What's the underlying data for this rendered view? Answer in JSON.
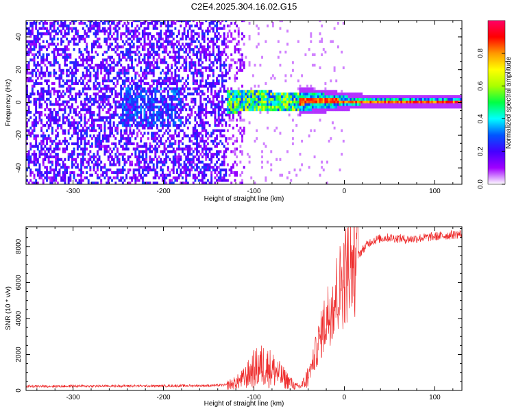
{
  "figure": {
    "title": "C2E4.2025.304.16.02.G15"
  },
  "chart_data": [
    {
      "type": "heatmap",
      "title": "C2E4.2025.304.16.02.G15",
      "xlabel": "Height of straight line (km)",
      "ylabel": "Frequency (Hz)",
      "xlim": [
        -352,
        130
      ],
      "ylim": [
        -50,
        50
      ],
      "xticks": [
        -300,
        -200,
        -100,
        0,
        100
      ],
      "xtick_labels": [
        "-300",
        "-200",
        "-100",
        "0",
        "100"
      ],
      "yticks": [
        -40,
        -20,
        0,
        20,
        40
      ],
      "ytick_labels": [
        "-40",
        "-20",
        "0",
        "20",
        "40"
      ],
      "colorbar": {
        "label": "Normalized spectral amplitude",
        "range": [
          0,
          1
        ],
        "ticks": [
          0.0,
          0.2,
          0.4,
          0.6,
          0.8
        ],
        "tick_labels": [
          "0.0",
          "0.2",
          "0.4",
          "0.6",
          "0.8"
        ],
        "colors": [
          "#ffffff",
          "#a000ff",
          "#4400ff",
          "#0055ff",
          "#00ffff",
          "#00ff44",
          "#aaff00",
          "#ffff00",
          "#ff9900",
          "#ff0000",
          "#ff0066"
        ]
      },
      "regions": [
        {
          "x": [
            -352,
            -130
          ],
          "description": "broadband noise",
          "amplitude": 0.15
        },
        {
          "x": [
            -130,
            -50
          ],
          "description": "noisy band around 0 Hz",
          "amplitude": 0.4
        },
        {
          "x": [
            -50,
            130
          ],
          "description": "narrow tone at ~0 Hz",
          "amplitude": 0.85
        }
      ]
    },
    {
      "type": "line",
      "xlabel": "Height of straight line (km)",
      "ylabel": "SNR (10 * v/v)",
      "xlim": [
        -352,
        130
      ],
      "ylim": [
        0,
        9100
      ],
      "xticks": [
        -300,
        -200,
        -100,
        0,
        100
      ],
      "xtick_labels": [
        "-300",
        "-200",
        "-100",
        "0",
        "100"
      ],
      "yticks": [
        0,
        2000,
        4000,
        6000,
        8000
      ],
      "ytick_labels": [
        "0",
        "2000",
        "4000",
        "6000",
        "8000"
      ],
      "color": "#ee2a2a",
      "series": [
        {
          "name": "SNR",
          "x": [
            -352,
            -300,
            -250,
            -200,
            -180,
            -150,
            -130,
            -120,
            -110,
            -100,
            -90,
            -80,
            -70,
            -60,
            -55,
            -50,
            -45,
            -40,
            -35,
            -30,
            -25,
            -20,
            -15,
            -10,
            -5,
            0,
            5,
            10,
            15,
            20,
            25,
            30,
            40,
            50,
            60,
            70,
            80,
            90,
            100,
            110,
            120,
            130
          ],
          "values": [
            230,
            240,
            250,
            250,
            260,
            270,
            300,
            420,
            700,
            1200,
            1400,
            1200,
            800,
            450,
            250,
            200,
            400,
            800,
            1500,
            2400,
            3200,
            4000,
            4600,
            5200,
            5700,
            6300,
            6800,
            7200,
            7500,
            7800,
            8100,
            8300,
            8450,
            8500,
            8450,
            8400,
            8450,
            8500,
            8550,
            8600,
            8650,
            8700
          ]
        }
      ]
    }
  ]
}
